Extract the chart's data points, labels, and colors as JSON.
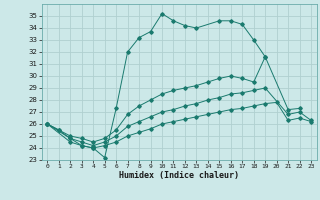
{
  "xlabel": "Humidex (Indice chaleur)",
  "bg_color": "#cce8e8",
  "grid_color": "#b0d0d0",
  "line_color": "#1a7a6e",
  "xlim": [
    -0.5,
    23.5
  ],
  "ylim": [
    23,
    36
  ],
  "xticks": [
    0,
    1,
    2,
    3,
    4,
    5,
    6,
    7,
    8,
    9,
    10,
    11,
    12,
    13,
    14,
    15,
    16,
    17,
    18,
    19,
    20,
    21,
    22,
    23
  ],
  "yticks": [
    23,
    24,
    25,
    26,
    27,
    28,
    29,
    30,
    31,
    32,
    33,
    34,
    35
  ],
  "series1_x": [
    0,
    1,
    2,
    3,
    4,
    5,
    6,
    7,
    8,
    9,
    10,
    11,
    12,
    13,
    15,
    16,
    17,
    18,
    19
  ],
  "series1_y": [
    26.0,
    25.5,
    24.8,
    24.2,
    24.0,
    23.2,
    27.3,
    32.0,
    33.2,
    33.7,
    35.2,
    34.6,
    34.2,
    34.0,
    34.6,
    34.6,
    34.3,
    33.0,
    31.6
  ],
  "series2_x": [
    0,
    1,
    2,
    3,
    4,
    5,
    6,
    7,
    8,
    9,
    10,
    11,
    12,
    13,
    14,
    15,
    16,
    17,
    18,
    19,
    21,
    22
  ],
  "series2_y": [
    26.0,
    25.5,
    25.0,
    24.8,
    24.5,
    24.8,
    25.5,
    26.8,
    27.5,
    28.0,
    28.5,
    28.8,
    29.0,
    29.2,
    29.5,
    29.8,
    30.0,
    29.8,
    29.5,
    31.6,
    27.2,
    27.3
  ],
  "series3_x": [
    0,
    2,
    3,
    4,
    5,
    6,
    7,
    8,
    9,
    10,
    11,
    12,
    13,
    14,
    15,
    16,
    17,
    18,
    19,
    21,
    22,
    23
  ],
  "series3_y": [
    26.0,
    24.8,
    24.5,
    24.2,
    24.5,
    25.0,
    25.8,
    26.2,
    26.6,
    27.0,
    27.2,
    27.5,
    27.7,
    28.0,
    28.2,
    28.5,
    28.6,
    28.8,
    29.0,
    26.8,
    27.0,
    26.3
  ],
  "series4_x": [
    0,
    2,
    3,
    4,
    5,
    6,
    7,
    8,
    9,
    10,
    11,
    12,
    13,
    14,
    15,
    16,
    17,
    18,
    19,
    20,
    21,
    22,
    23
  ],
  "series4_y": [
    26.0,
    24.5,
    24.2,
    24.0,
    24.2,
    24.5,
    25.0,
    25.3,
    25.6,
    26.0,
    26.2,
    26.4,
    26.6,
    26.8,
    27.0,
    27.2,
    27.3,
    27.5,
    27.7,
    27.8,
    26.3,
    26.5,
    26.2
  ]
}
